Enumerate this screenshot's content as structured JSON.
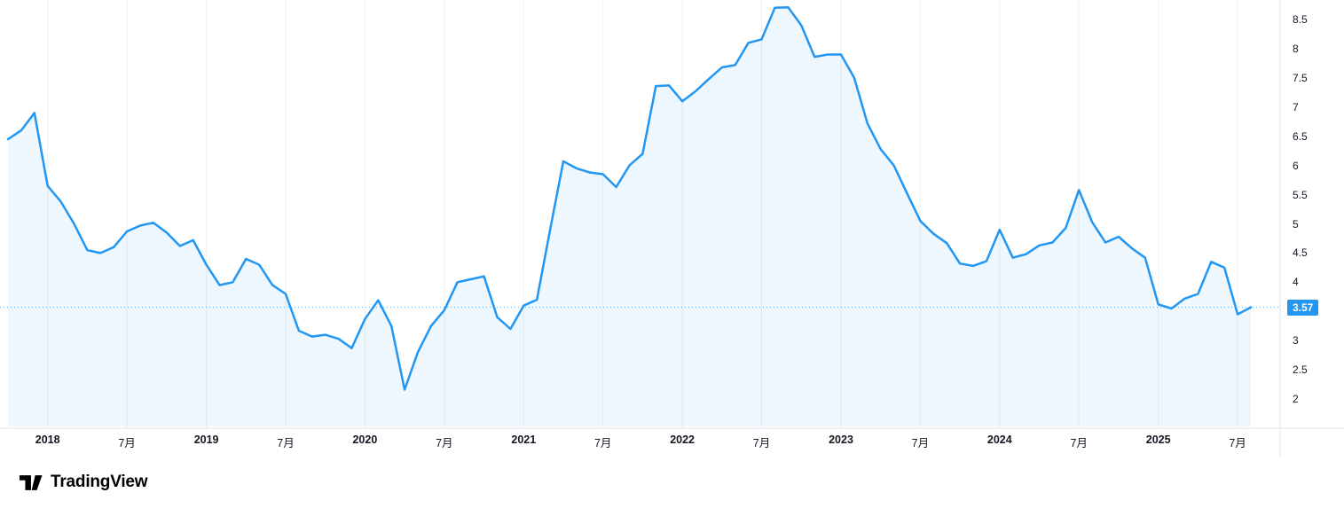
{
  "chart_data": {
    "type": "area",
    "title": "",
    "x_start": "2017-10",
    "x_interval": "monthly",
    "x_tick_labels": [
      {
        "label": "2018",
        "month": 3
      },
      {
        "label": "7月",
        "month": 9
      },
      {
        "label": "2019",
        "month": 15
      },
      {
        "label": "7月",
        "month": 21
      },
      {
        "label": "2020",
        "month": 27
      },
      {
        "label": "7月",
        "month": 33
      },
      {
        "label": "2021",
        "month": 39
      },
      {
        "label": "7月",
        "month": 45
      },
      {
        "label": "2022",
        "month": 51
      },
      {
        "label": "7月",
        "month": 57
      },
      {
        "label": "2023",
        "month": 63
      },
      {
        "label": "7月",
        "month": 69
      },
      {
        "label": "2024",
        "month": 75
      },
      {
        "label": "7月",
        "month": 81
      },
      {
        "label": "2025",
        "month": 87
      },
      {
        "label": "7月",
        "month": 93
      }
    ],
    "y_ticks": [
      8.5,
      8,
      7.5,
      7,
      6.5,
      6,
      5.5,
      5,
      4.5,
      4,
      3,
      2.5,
      2
    ],
    "ylim": [
      1.75,
      8.85
    ],
    "grid": "vertical-only",
    "legend_position": "none",
    "values": [
      6.45,
      6.6,
      6.9,
      5.65,
      5.38,
      5.0,
      4.55,
      4.5,
      4.6,
      4.87,
      4.97,
      5.02,
      4.85,
      4.62,
      4.72,
      4.3,
      3.95,
      4.0,
      4.4,
      4.3,
      3.95,
      3.8,
      3.17,
      3.07,
      3.1,
      3.03,
      2.87,
      3.37,
      3.69,
      3.25,
      2.16,
      2.8,
      3.25,
      3.52,
      4.0,
      4.05,
      4.1,
      3.4,
      3.2,
      3.6,
      3.7,
      4.9,
      6.07,
      5.95,
      5.88,
      5.85,
      5.63,
      6.0,
      6.2,
      7.36,
      7.37,
      7.1,
      7.27,
      7.48,
      7.68,
      7.72,
      8.1,
      8.16,
      8.7,
      8.71,
      8.4,
      7.86,
      7.9,
      7.9,
      7.5,
      6.72,
      6.28,
      6.0,
      5.52,
      5.05,
      4.83,
      4.67,
      4.32,
      4.28,
      4.36,
      4.9,
      4.42,
      4.48,
      4.63,
      4.68,
      4.93,
      5.58,
      5.03,
      4.68,
      4.78,
      4.58,
      4.42,
      3.62,
      3.55,
      3.72,
      3.8,
      4.35,
      4.25,
      3.45,
      3.57
    ],
    "last_price": 3.57,
    "colors": {
      "line": "#2196F3",
      "fill": "rgba(33,150,243,0.075)",
      "grid": "#eef0f3",
      "axis_border": "#e0e3eb",
      "axis_text": "#131722",
      "badge_bg": "#2196F3",
      "badge_text": "#FFFFFF"
    }
  },
  "price_label": {
    "value": "3.57"
  },
  "footer": {
    "brand": "TradingView"
  }
}
